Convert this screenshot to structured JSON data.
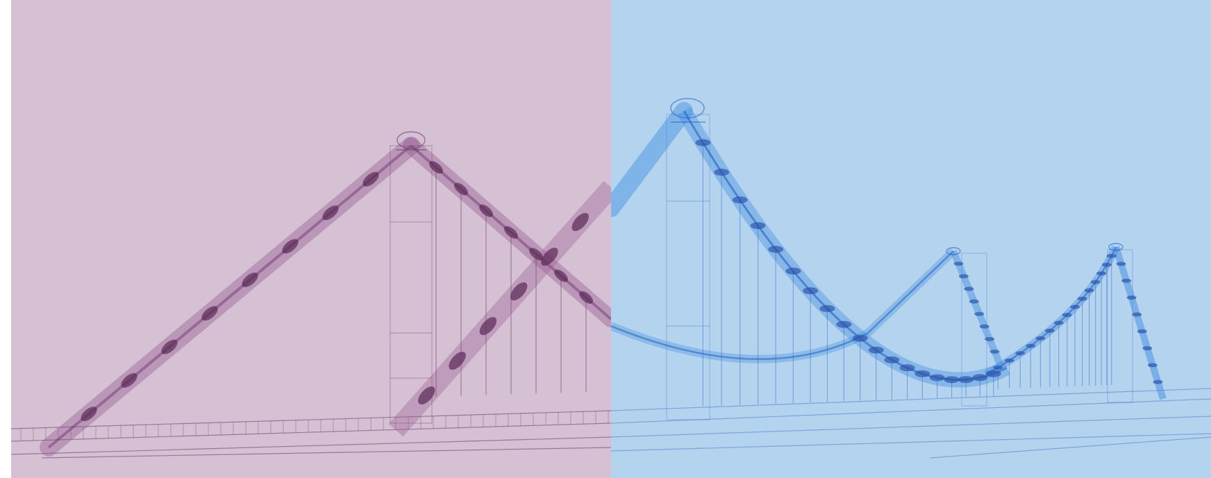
{
  "image": {
    "subject": "bridge-wireframe-overlay",
    "panels": [
      {
        "name": "left-panel",
        "tint": "#d5c1d3",
        "line_color": "#6a3a66"
      },
      {
        "name": "right-panel",
        "tint": "#b4d3ef",
        "line_color": "#3a68c4"
      }
    ],
    "background": "#ffffff"
  }
}
